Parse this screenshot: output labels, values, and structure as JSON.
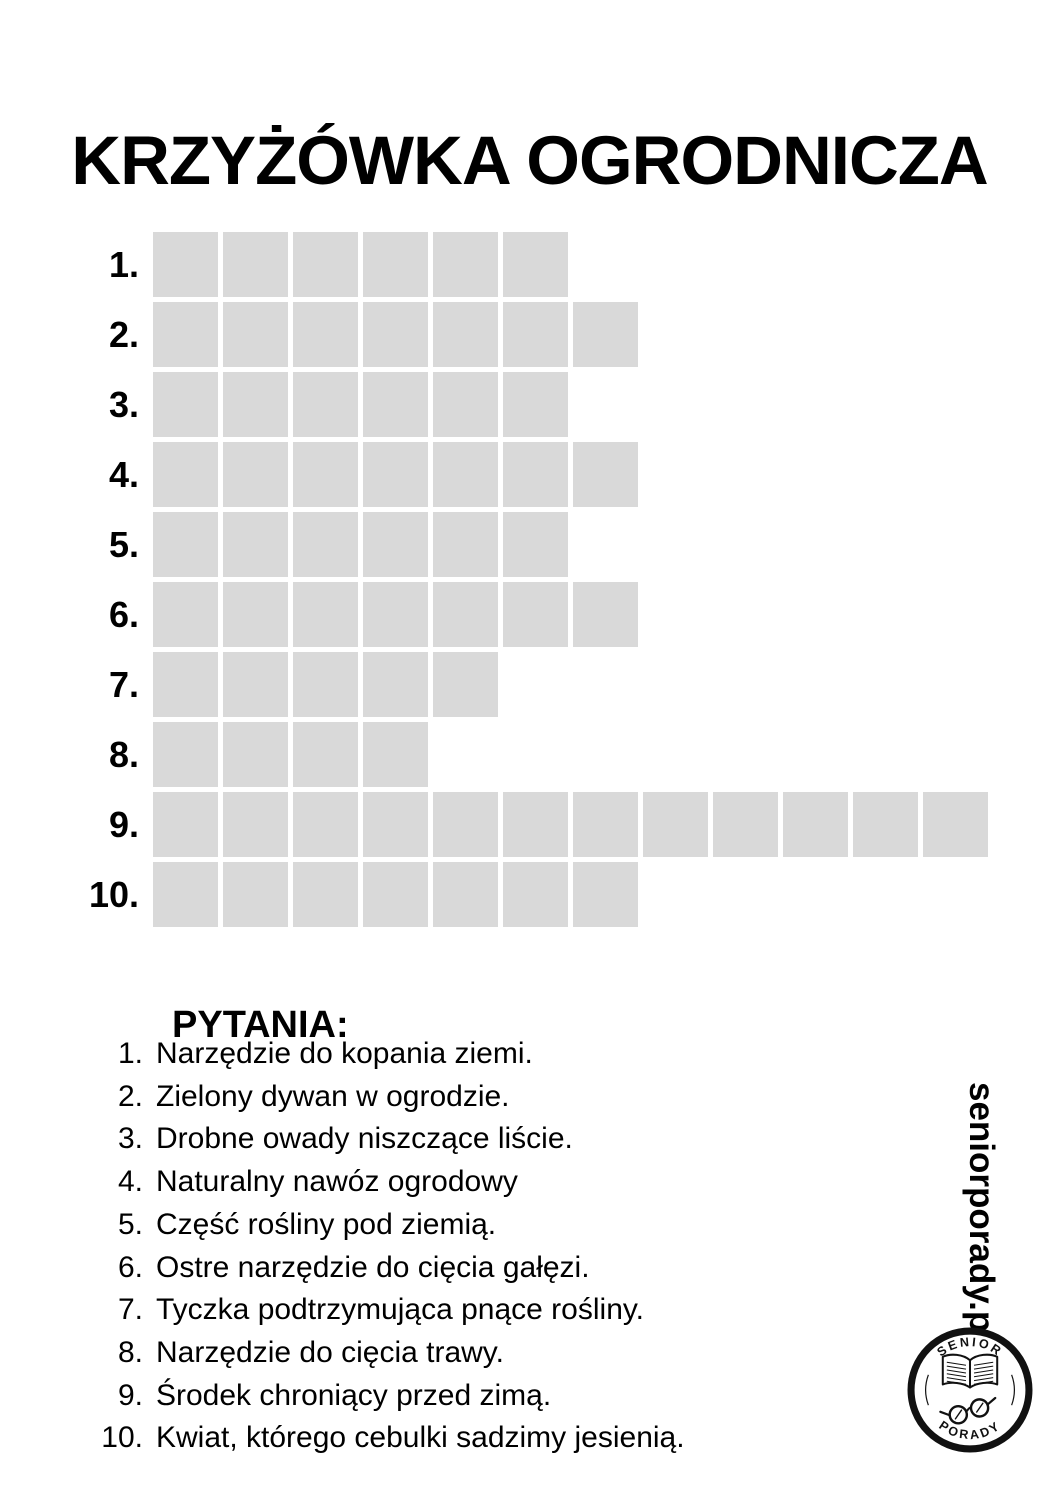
{
  "page": {
    "title": "KRZYŻÓWKA OGRODNICZA"
  },
  "colors": {
    "background": "#ffffff",
    "text": "#000000",
    "cell": "#d9d9d9",
    "logo_ink": "#111111"
  },
  "crossword": {
    "rows": [
      {
        "label": "1.",
        "cells": 6
      },
      {
        "label": "2.",
        "cells": 7
      },
      {
        "label": "3.",
        "cells": 6
      },
      {
        "label": "4.",
        "cells": 7
      },
      {
        "label": "5.",
        "cells": 6
      },
      {
        "label": "6.",
        "cells": 7
      },
      {
        "label": "7.",
        "cells": 5
      },
      {
        "label": "8.",
        "cells": 4
      },
      {
        "label": "9.",
        "cells": 12
      },
      {
        "label": "10.",
        "cells": 7
      }
    ]
  },
  "questions": {
    "heading": "PYTANIA:",
    "items": [
      {
        "num": "1.",
        "text": "Narzędzie do kopania ziemi."
      },
      {
        "num": "2.",
        "text": "Zielony dywan w ogrodzie."
      },
      {
        "num": "3.",
        "text": "Drobne owady niszczące liście."
      },
      {
        "num": "4.",
        "text": "Naturalny nawóz ogrodowy"
      },
      {
        "num": "5.",
        "text": "Część rośliny pod ziemią."
      },
      {
        "num": "6.",
        "text": "Ostre narzędzie do cięcia gałęzi."
      },
      {
        "num": "7.",
        "text": "Tyczka podtrzymująca pnące rośliny."
      },
      {
        "num": "8.",
        "text": "Narzędzie do cięcia trawy."
      },
      {
        "num": "9.",
        "text": "Środek chroniący przed zimą."
      },
      {
        "num": "10.",
        "text": "Kwiat, którego cebulki sadzimy jesienią."
      }
    ]
  },
  "branding": {
    "site_url": "seniorporady.pl",
    "logo": {
      "top_text": "SENIOR",
      "bottom_text": "PORADY",
      "icons": [
        "open-book-icon",
        "glasses-icon"
      ]
    }
  }
}
